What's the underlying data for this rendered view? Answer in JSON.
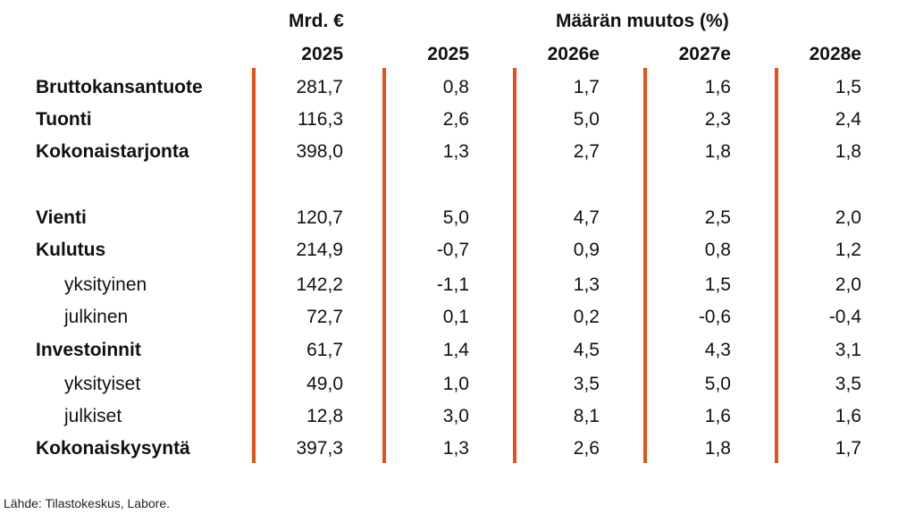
{
  "chart_data": {
    "type": "table",
    "header_groups": [
      {
        "label": "Mrd. €"
      },
      {
        "label": "Määrän muutos (%)"
      }
    ],
    "columns": [
      "2025",
      "2025",
      "2026e",
      "2027e",
      "2028e"
    ],
    "rows": [
      {
        "label": "Bruttokansantuote",
        "level": 0,
        "values": [
          "281,7",
          "0,8",
          "1,7",
          "1,6",
          "1,5"
        ]
      },
      {
        "label": "Tuonti",
        "level": 0,
        "values": [
          "116,3",
          "2,6",
          "5,0",
          "2,3",
          "2,4"
        ]
      },
      {
        "label": "Kokonaistarjonta",
        "level": 0,
        "values": [
          "398,0",
          "1,3",
          "2,7",
          "1,8",
          "1,8"
        ]
      },
      {
        "label": "Vienti",
        "level": 0,
        "values": [
          "120,7",
          "5,0",
          "4,7",
          "2,5",
          "2,0"
        ]
      },
      {
        "label": "Kulutus",
        "level": 0,
        "values": [
          "214,9",
          "-0,7",
          "0,9",
          "0,8",
          "1,2"
        ]
      },
      {
        "label": "yksityinen",
        "level": 1,
        "values": [
          "142,2",
          "-1,1",
          "1,3",
          "1,5",
          "2,0"
        ]
      },
      {
        "label": "julkinen",
        "level": 1,
        "values": [
          "72,7",
          "0,1",
          "0,2",
          "-0,6",
          "-0,4"
        ]
      },
      {
        "label": "Investoinnit",
        "level": 0,
        "values": [
          "61,7",
          "1,4",
          "4,5",
          "4,3",
          "3,1"
        ]
      },
      {
        "label": "yksityiset",
        "level": 1,
        "values": [
          "49,0",
          "1,0",
          "3,5",
          "5,0",
          "3,5"
        ]
      },
      {
        "label": "julkiset",
        "level": 1,
        "values": [
          "12,8",
          "3,0",
          "8,1",
          "1,6",
          "1,6"
        ]
      },
      {
        "label": "Kokonaiskysyntä",
        "level": 0,
        "values": [
          "397,3",
          "1,3",
          "2,6",
          "1,8",
          "1,7"
        ]
      }
    ],
    "source": "Lähde: Tilastokeskus, Labore.",
    "separator_color": "#e8501a"
  }
}
